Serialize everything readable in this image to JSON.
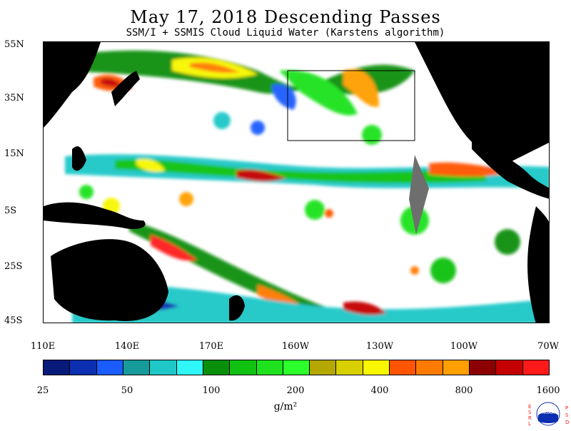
{
  "title": "May 17, 2018  Descending Passes",
  "subtitle": "SSM/I + SSMIS Cloud Liquid Water (Karstens algorithm)",
  "latitude_labels": [
    "55N",
    "35N",
    "15N",
    "5S",
    "25S",
    "45S"
  ],
  "longitude_labels": [
    "110E",
    "140E",
    "170E",
    "160W",
    "130W",
    "100W",
    "70W"
  ],
  "colorbar": {
    "colors": [
      "#081a7a",
      "#0b2fb0",
      "#1a5cff",
      "#179a9a",
      "#1fc7c7",
      "#2ff7f7",
      "#0a8f0a",
      "#11c111",
      "#1fe21f",
      "#2cff2c",
      "#b3a700",
      "#d8d000",
      "#f7f700",
      "#ff5500",
      "#ff7a00",
      "#ff9f00",
      "#8c0000",
      "#c40000",
      "#ff1a1a"
    ],
    "tick_labels": [
      "25",
      "50",
      "100",
      "200",
      "400",
      "800",
      "1600"
    ]
  },
  "units": "g/m²",
  "logo": {
    "left_letters": "ESRL",
    "right_letters": "PSD",
    "center_text": "NOAA"
  },
  "colors": {
    "land": "#000000",
    "ocean": "#ffffff",
    "box": "#000000",
    "gap_wedge": "#6e6e6e"
  }
}
